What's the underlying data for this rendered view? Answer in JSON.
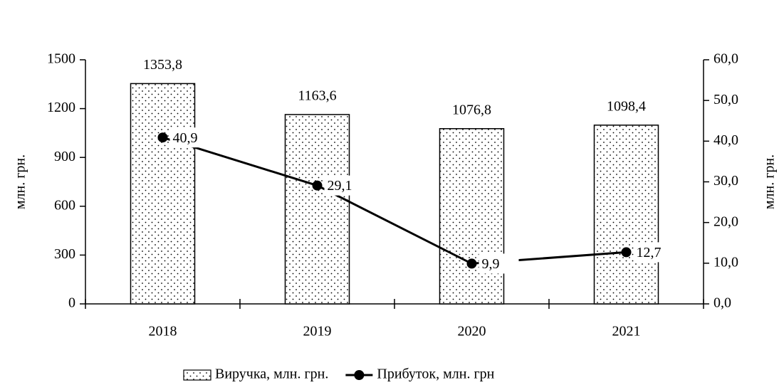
{
  "chart_data": {
    "type": "bar",
    "categories": [
      "2018",
      "2019",
      "2020",
      "2021"
    ],
    "series": [
      {
        "name": "Виручка, млн. грн.",
        "type": "bar",
        "color": "#000000",
        "values": [
          1353.8,
          1163.6,
          1076.8,
          1098.4
        ],
        "value_labels": [
          "1353,8",
          "1163,6",
          "1076,8",
          "1098,4"
        ]
      },
      {
        "name": "Прибуток, млн. грн",
        "type": "line",
        "axis": "y2",
        "color": "#000000",
        "values": [
          40.9,
          29.1,
          9.9,
          12.7
        ],
        "value_labels": [
          "40,9",
          "29,1",
          "9,9",
          "12,7"
        ]
      }
    ],
    "ylabel": "млн. грн.",
    "y2label": "млн. грн.",
    "ylim": [
      0,
      1500
    ],
    "yticks": [
      0,
      300,
      600,
      900,
      1200,
      1500
    ],
    "y2lim": [
      0,
      60
    ],
    "y2ticks": [
      {
        "value": 0,
        "label": "0,0"
      },
      {
        "value": 10,
        "label": "10,0"
      },
      {
        "value": 20,
        "label": "20,0"
      },
      {
        "value": 30,
        "label": "30,0"
      },
      {
        "value": 40,
        "label": "40,0"
      },
      {
        "value": 50,
        "label": "50,0"
      },
      {
        "value": 60,
        "label": "60,0"
      }
    ],
    "legend": "bottom"
  }
}
